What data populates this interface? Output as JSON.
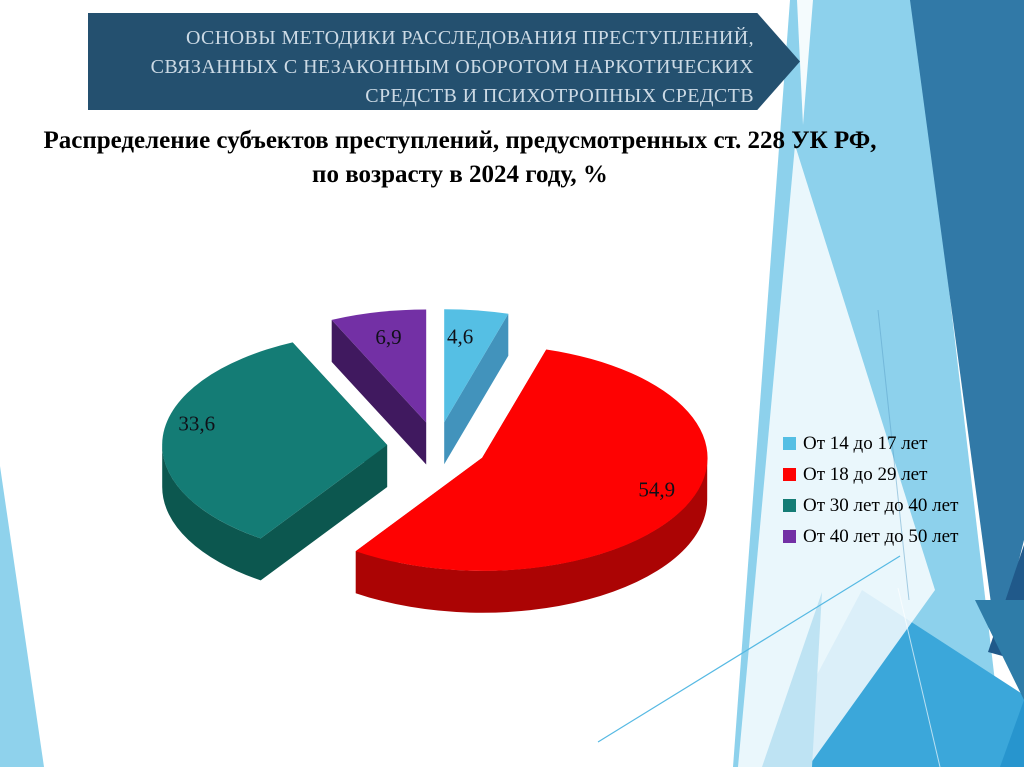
{
  "slide": {
    "banner": {
      "lines": [
        "ОСНОВЫ МЕТОДИКИ РАССЛЕДОВАНИЯ ПРЕСТУПЛЕНИЙ,",
        "СВЯЗАННЫХ С НЕЗАКОННЫМ ОБОРОТОМ НАРКОТИЧЕСКИХ",
        "СРЕДСТВ И ПСИХОТРОПНЫХ СРЕДСТВ"
      ],
      "bg_color": "#24506F",
      "text_color": "#CCDAE5"
    },
    "title": {
      "line1": "Распределение субъектов преступлений, предусмотренных ст. 228 УК РФ,",
      "line2": "по возрасту в 2024 году, %"
    }
  },
  "chart_data": {
    "type": "pie",
    "style": "3d-exploded",
    "title": "Распределение субъектов преступлений, предусмотренных ст. 228 УК РФ, по возрасту в 2024 году, %",
    "unit": "%",
    "categories": [
      "От 14 до 17 лет",
      "От 18 до 29 лет",
      "От 30 лет до 40 лет",
      "От 40 лет до 50 лет"
    ],
    "values": [
      4.6,
      54.9,
      33.6,
      6.9
    ],
    "value_labels": [
      "4,6",
      "54,9",
      "33,6",
      "6,9"
    ],
    "colors": [
      "#55BFE4",
      "#FE0202",
      "#147C75",
      "#7330A5"
    ],
    "side_colors": [
      "#4293BC",
      "#AB0404",
      "#0C574F",
      "#40195F"
    ],
    "legend_position": "right",
    "start_angle_deg": 0,
    "direction": "clockwise"
  }
}
